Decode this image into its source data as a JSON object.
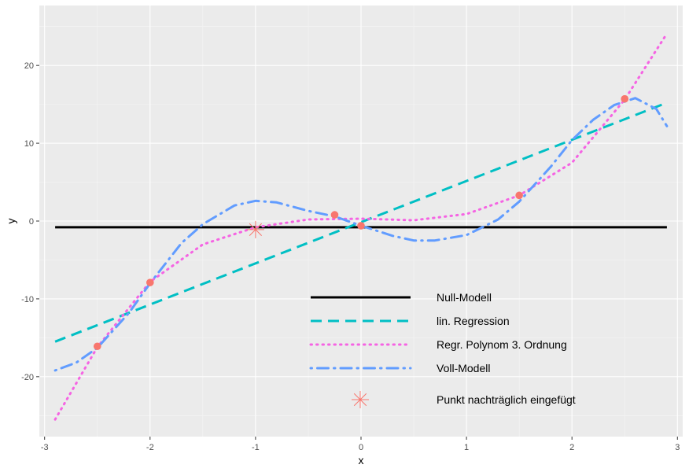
{
  "chart_data": {
    "type": "line",
    "title": "",
    "xlabel": "x",
    "ylabel": "y",
    "xlim": [
      -3.05,
      3.05
    ],
    "ylim": [
      -27.7,
      27.7
    ],
    "x_ticks": [
      -3,
      -2,
      -1,
      0,
      1,
      2,
      3
    ],
    "x_tick_labels": [
      "-3",
      "-2",
      "-1",
      "0",
      "1",
      "2",
      "3"
    ],
    "y_ticks": [
      -20,
      -10,
      0,
      10,
      20
    ],
    "y_tick_labels": [
      "-20",
      "-10",
      "0",
      "10",
      "20"
    ],
    "grid": true,
    "legend_position": "inside-bottom-center",
    "points": {
      "color": "#F8766D",
      "x": [
        -2.5,
        -2.0,
        -0.25,
        0.0,
        1.5,
        2.5
      ],
      "y": [
        -16.1,
        -7.9,
        0.8,
        -0.6,
        3.3,
        15.7
      ]
    },
    "added_point": {
      "x": -1.0,
      "y": -1.1,
      "color": "#F8766D"
    },
    "series": [
      {
        "name": "Null-Modell",
        "style": "solid",
        "color": "#000000",
        "x": [
          -2.9,
          2.9
        ],
        "y": [
          -0.8,
          -0.8
        ]
      },
      {
        "name": "lin. Regression",
        "style": "dashed",
        "color": "#00BFC4",
        "x": [
          -2.9,
          2.9
        ],
        "y": [
          -15.5,
          15.2
        ]
      },
      {
        "name": "Regr. Polynom 3. Ordnung",
        "style": "dotted",
        "color": "#F564E3",
        "x": [
          -2.9,
          -2.5,
          -2.0,
          -1.5,
          -1.0,
          -0.5,
          0.0,
          0.5,
          1.0,
          1.5,
          2.0,
          2.5,
          2.9
        ],
        "y": [
          -25.5,
          -16.2,
          -7.8,
          -3.0,
          -0.8,
          0.2,
          0.3,
          0.1,
          0.9,
          3.3,
          7.5,
          15.6,
          24.1
        ]
      },
      {
        "name": "Voll-Modell",
        "style": "dotdash",
        "color": "#619CFF",
        "x": [
          -2.9,
          -2.7,
          -2.5,
          -2.2,
          -2.0,
          -1.7,
          -1.5,
          -1.2,
          -1.0,
          -0.8,
          -0.5,
          -0.25,
          0.0,
          0.3,
          0.5,
          0.7,
          1.0,
          1.3,
          1.5,
          1.8,
          2.0,
          2.2,
          2.4,
          2.6,
          2.8,
          2.9
        ],
        "y": [
          -19.2,
          -18.2,
          -16.3,
          -11.8,
          -8.0,
          -2.8,
          -0.4,
          2.0,
          2.6,
          2.4,
          1.3,
          0.6,
          -0.6,
          -1.9,
          -2.5,
          -2.5,
          -1.8,
          0.2,
          2.5,
          7.0,
          10.4,
          13.0,
          14.9,
          15.8,
          14.4,
          12.2
        ]
      }
    ],
    "legend": [
      {
        "label": "Null-Modell",
        "style": "solid",
        "color": "#000000"
      },
      {
        "label": "lin. Regression",
        "style": "dashed",
        "color": "#00BFC4"
      },
      {
        "label": "Regr. Polynom 3. Ordnung",
        "style": "dotted",
        "color": "#F564E3"
      },
      {
        "label": "Voll-Modell",
        "style": "dotdash",
        "color": "#619CFF"
      },
      {
        "label": "Punkt nachträglich eingefügt",
        "style": "asterisk",
        "color": "#F8766D"
      }
    ]
  }
}
